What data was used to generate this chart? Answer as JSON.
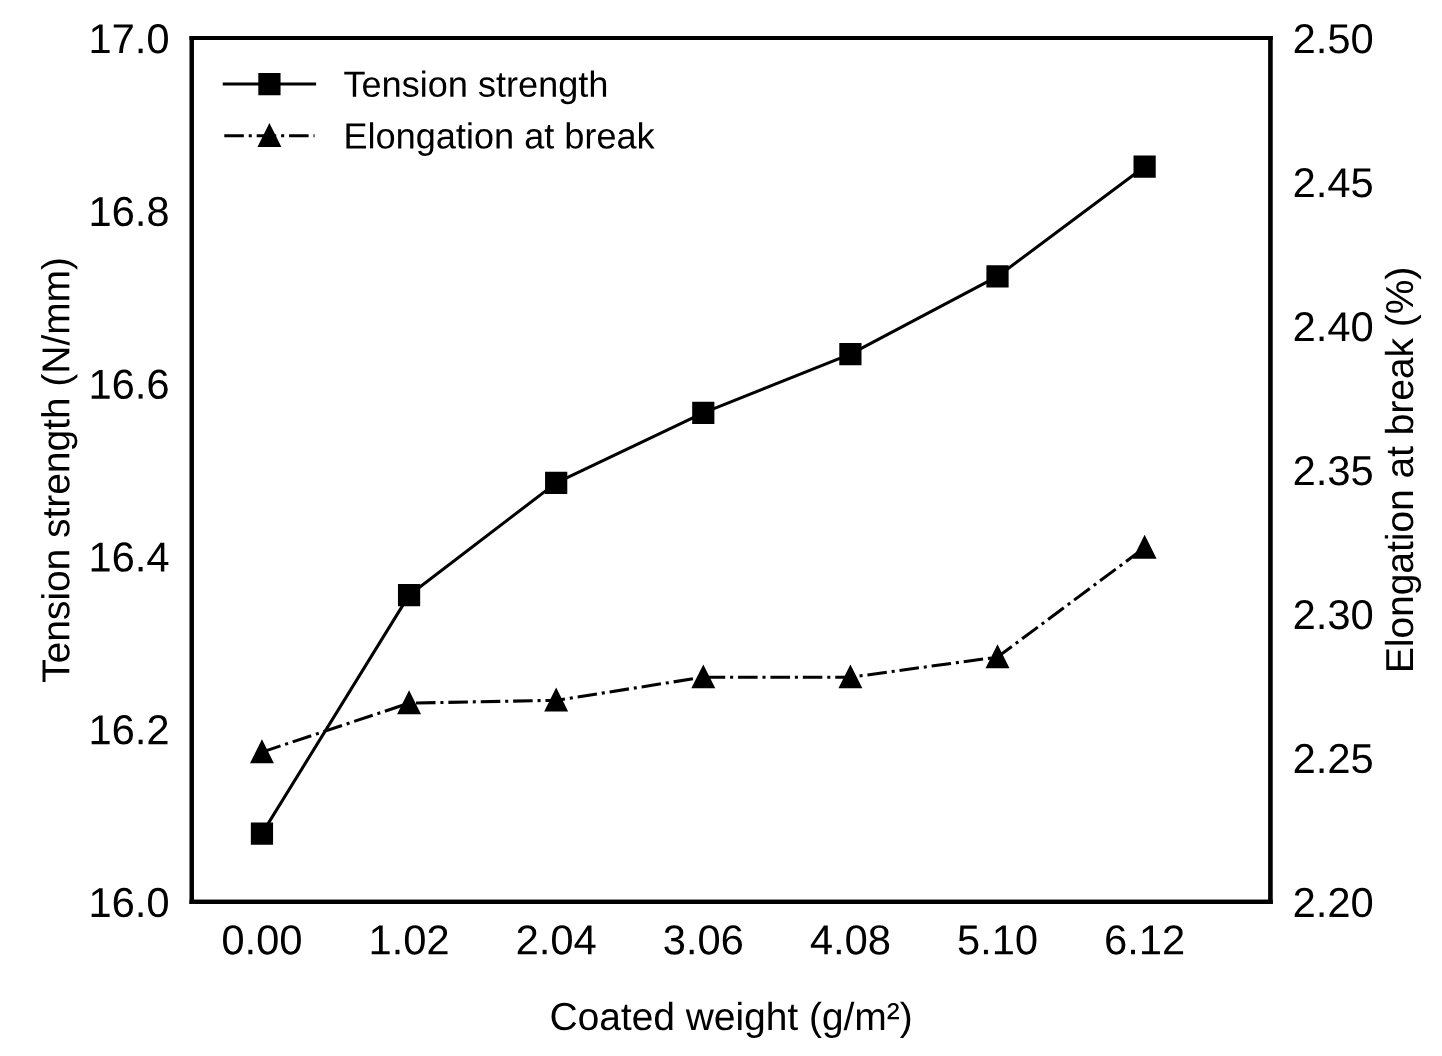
{
  "chart_data": {
    "type": "line",
    "categories": [
      "0.00",
      "1.02",
      "2.04",
      "3.06",
      "4.08",
      "5.10",
      "6.12"
    ],
    "xlabel": "Coated weight (g/m²)",
    "ylabel": "Tension strength (N/mm)",
    "y2label": "Elongation at break (%)",
    "series": [
      {
        "name": "Tension strength",
        "color": "#000000",
        "marker": "square",
        "line_style": "solid",
        "values": [
          16.079,
          16.355,
          16.485,
          16.566,
          16.634,
          16.724,
          16.851
        ]
      },
      {
        "name": "Elongation at break",
        "color": "#000000",
        "marker": "triangle",
        "line_style": "dashdot",
        "axis": "y2",
        "values": [
          2.252,
          2.269,
          2.27,
          2.278,
          2.278,
          2.285,
          2.323
        ]
      }
    ],
    "ylim": [
      16.0,
      17.0
    ],
    "yticks": [
      {
        "value": 16.0,
        "label": "16.0"
      },
      16.2,
      16.4,
      16.6,
      16.8,
      {
        "value": 17.0,
        "label": "17.0"
      }
    ],
    "y2lim": [
      2.2,
      2.5
    ],
    "y2ticks": [
      {
        "value": 2.2,
        "label": "2.20"
      },
      2.25,
      {
        "value": 2.3,
        "label": "2.30"
      },
      2.35,
      {
        "value": 2.4,
        "label": "2.40"
      },
      2.45,
      {
        "value": 2.5,
        "label": "2.50"
      }
    ],
    "legend": "top left",
    "grid": false
  }
}
